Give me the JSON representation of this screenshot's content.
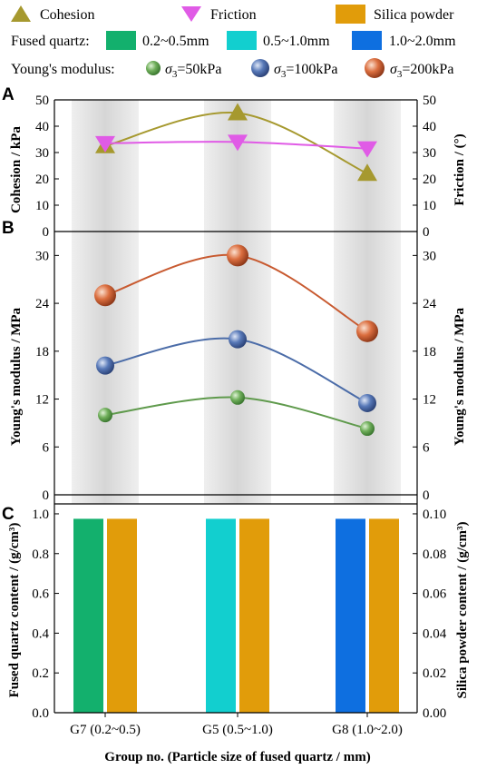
{
  "colors": {
    "cohesion": "#a6992f",
    "friction": "#e05be6",
    "silica": "#e19c0a",
    "fq_small": "#13b06d",
    "fq_mid": "#12cfcf",
    "fq_large": "#0e6fe0",
    "ym_50": "#5f9a4c",
    "ym_100": "#4b6ca8",
    "ym_200": "#c85a30",
    "band": "#dedede"
  },
  "legend": {
    "cohesion": "Cohesion",
    "friction": "Friction",
    "silica": "Silica powder",
    "fused_quartz_title": "Fused quartz:",
    "fq_small": "0.2~0.5mm",
    "fq_mid": "0.5~1.0mm",
    "fq_large": "1.0~2.0mm",
    "ym_title": "Young's modulus:",
    "ym_50": "=50kPa",
    "ym_100": "=100kPa",
    "ym_200": "=200kPa",
    "sigma": "σ",
    "sigma_sub": "3"
  },
  "panels": {
    "a": "A",
    "b": "B",
    "c": "C"
  },
  "xlabel": "Group no. (Particle size of fused quartz / mm)",
  "chart_data": [
    {
      "type": "line",
      "panel": "A",
      "categories": [
        "G7 (0.2~0.5)",
        "G5 (0.5~1.0)",
        "G8 (1.0~2.0)"
      ],
      "ylabel": "Cohesion / kPa",
      "ylabel_right": "Friction / (°)",
      "ylim": [
        0,
        50
      ],
      "yticks": [
        0,
        10,
        20,
        30,
        40,
        50
      ],
      "ylim_right": [
        0,
        50
      ],
      "yticks_right": [
        0,
        10,
        20,
        30,
        40,
        50
      ],
      "series": [
        {
          "name": "Cohesion",
          "axis": "left",
          "marker": "triangle-up",
          "values": [
            32.5,
            45,
            22
          ]
        },
        {
          "name": "Friction",
          "axis": "right",
          "marker": "triangle-down",
          "values": [
            33.5,
            34,
            31.5
          ]
        }
      ]
    },
    {
      "type": "line",
      "panel": "B",
      "categories": [
        "G7 (0.2~0.5)",
        "G5 (0.5~1.0)",
        "G8 (1.0~2.0)"
      ],
      "ylabel": "Young's modulus / MPa",
      "ylabel_right": "Young's modulus / MPa",
      "ylim": [
        0,
        33
      ],
      "yticks": [
        0,
        6,
        12,
        18,
        24,
        30
      ],
      "series": [
        {
          "name": "σ3=50kPa",
          "values": [
            10,
            12.2,
            8.3
          ]
        },
        {
          "name": "σ3=100kPa",
          "values": [
            16.2,
            19.5,
            11.5
          ]
        },
        {
          "name": "σ3=200kPa",
          "values": [
            25,
            30,
            20.5
          ]
        }
      ]
    },
    {
      "type": "bar",
      "panel": "C",
      "categories": [
        "G7 (0.2~0.5)",
        "G5 (0.5~1.0)",
        "G8 (1.0~2.0)"
      ],
      "ylabel": "Fused quartz content / (g/cm³)",
      "ylabel_right": "Silica powder content / (g/cm³)",
      "ylim": [
        0,
        1.05
      ],
      "yticks": [
        "0.0",
        "0.2",
        "0.4",
        "0.6",
        "0.8",
        "1.0"
      ],
      "ylim_right": [
        0,
        0.105
      ],
      "yticks_right": [
        "0.00",
        "0.02",
        "0.04",
        "0.06",
        "0.08",
        "0.10"
      ],
      "series": [
        {
          "name": "Fused quartz",
          "axis": "left",
          "values": [
            0.975,
            0.975,
            0.975
          ]
        },
        {
          "name": "Silica powder",
          "axis": "right",
          "values": [
            0.0975,
            0.0975,
            0.0975
          ]
        }
      ]
    }
  ]
}
